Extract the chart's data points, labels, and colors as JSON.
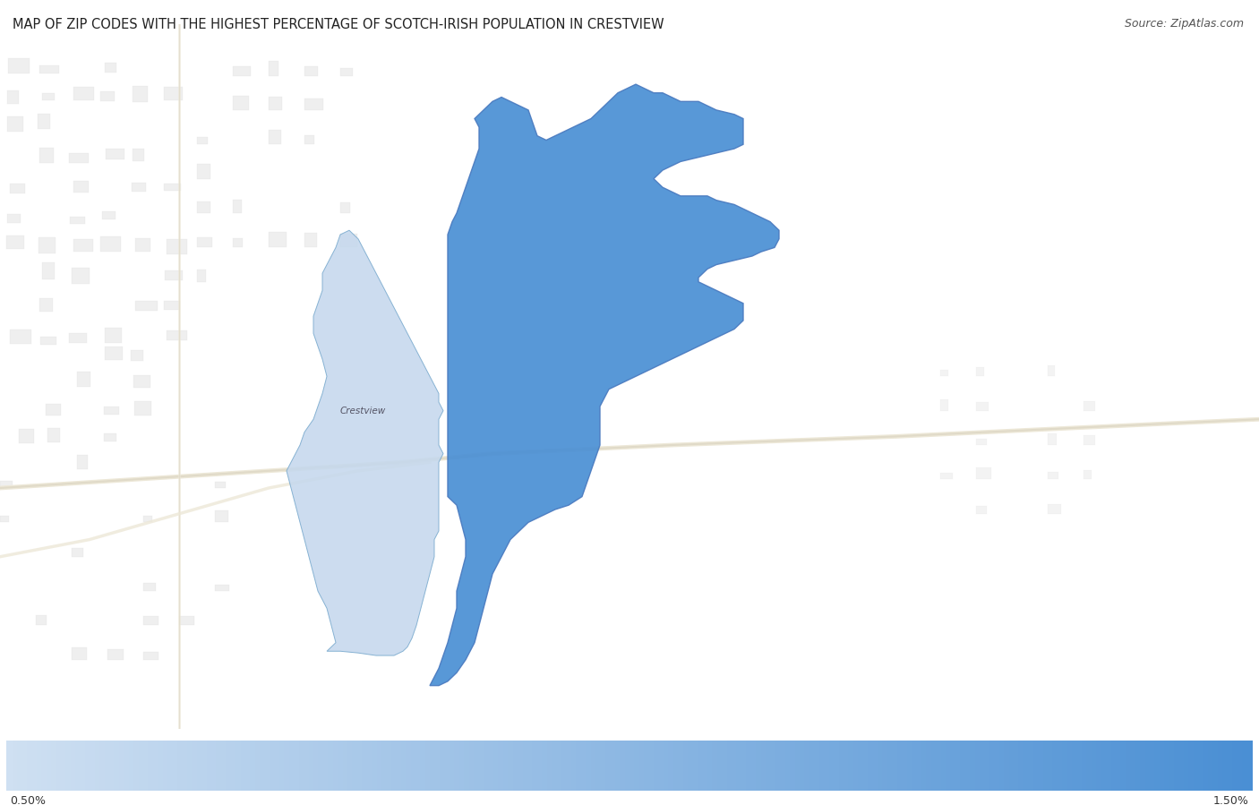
{
  "title": "MAP OF ZIP CODES WITH THE HIGHEST PERCENTAGE OF SCOTCH-IRISH POPULATION IN CRESTVIEW",
  "source": "Source: ZipAtlas.com",
  "colorbar_label_min": "0.50%",
  "colorbar_label_max": "1.50%",
  "background_color": "#ffffff",
  "map_bg_color": "#f5f4f0",
  "title_color": "#222222",
  "source_color": "#555555",
  "title_fontsize": 10.5,
  "source_fontsize": 9,
  "crestview_label": "Crestview",
  "crestview_label_color": "#555566",
  "crestview_label_fontsize": 7.5,
  "light_blue_region_color": "#c5d8ed",
  "dark_blue_region_color": "#4a8fd4",
  "region_border_color": "#4a7abf",
  "light_region_border_color": "#7aaace",
  "colorbar_color_start": "#cfe0f2",
  "colorbar_color_end": "#4a8fd4",
  "urban_block_color": "#e2e2e2",
  "urban_block_edge": "#d4d4d4",
  "road_color": "#ede8d8",
  "road_color2": "#e0dac8"
}
